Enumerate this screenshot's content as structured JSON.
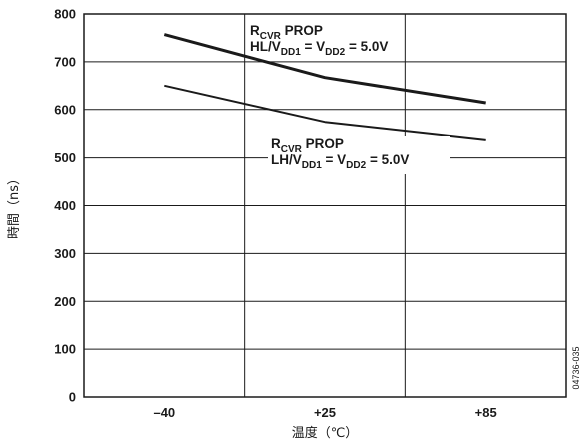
{
  "chart_data": {
    "type": "line",
    "xlabel": "温度（℃）",
    "ylabel": "時間（ns）",
    "categories": [
      "–40",
      "+25",
      "+85"
    ],
    "ylim": [
      0,
      800
    ],
    "y_ticks": [
      "0",
      "100",
      "200",
      "300",
      "400",
      "500",
      "600",
      "700",
      "800"
    ],
    "grid": true,
    "series": [
      {
        "name": "R_CVR PROP HL/V_DD1 = V_DD2 = 5.0V",
        "values": [
          757,
          667,
          614
        ],
        "stroke_width": 3
      },
      {
        "name": "R_CVR PROP LH/V_DD1 = V_DD2 = 5.0V",
        "values": [
          650,
          574,
          537
        ],
        "stroke_width": 2
      }
    ],
    "annotations": [
      {
        "line1": {
          "r": "R",
          "r_sub": "CVR",
          "rest": " PROP"
        },
        "line2": {
          "a": "HL/V",
          "a_sub": "DD1",
          "b": " = V",
          "b_sub": "DD2",
          "c": " = 5.0V"
        }
      },
      {
        "line1": {
          "r": "R",
          "r_sub": "CVR",
          "rest": " PROP"
        },
        "line2": {
          "a": "LH/V",
          "a_sub": "DD1",
          "b": " = V",
          "b_sub": "DD2",
          "c": " = 5.0V"
        }
      }
    ],
    "figure_id": "04736-035"
  },
  "colors": {
    "line": "#1a1a1a",
    "grid": "#1a1a1a",
    "background": "#ffffff"
  }
}
